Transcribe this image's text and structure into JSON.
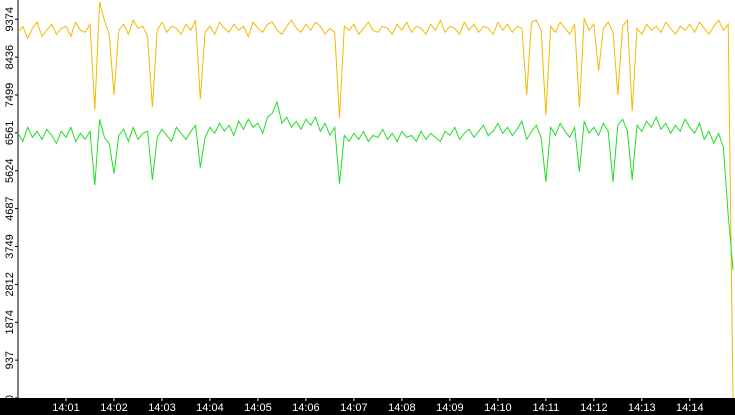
{
  "chart_data": {
    "type": "line",
    "categories": [
      null,
      null,
      null,
      null,
      null,
      null,
      null,
      null,
      null,
      null,
      "14:01",
      null,
      null,
      null,
      null,
      null,
      null,
      null,
      null,
      null,
      "14:02",
      null,
      null,
      null,
      null,
      null,
      null,
      null,
      null,
      null,
      "14:03",
      null,
      null,
      null,
      null,
      null,
      null,
      null,
      null,
      null,
      "14:04",
      null,
      null,
      null,
      null,
      null,
      null,
      null,
      null,
      null,
      "14:05",
      null,
      null,
      null,
      null,
      null,
      null,
      null,
      null,
      null,
      "14:06",
      null,
      null,
      null,
      null,
      null,
      null,
      null,
      null,
      null,
      "14:07",
      null,
      null,
      null,
      null,
      null,
      null,
      null,
      null,
      null,
      "14:08",
      null,
      null,
      null,
      null,
      null,
      null,
      null,
      null,
      null,
      "14:09",
      null,
      null,
      null,
      null,
      null,
      null,
      null,
      null,
      null,
      "14:10",
      null,
      null,
      null,
      null,
      null,
      null,
      null,
      null,
      null,
      "14:11",
      null,
      null,
      null,
      null,
      null,
      null,
      null,
      null,
      null,
      "14:12",
      null,
      null,
      null,
      null,
      null,
      null,
      null,
      null,
      null,
      "14:13",
      null,
      null,
      null,
      null,
      null,
      null,
      null,
      null,
      null,
      "14:14",
      null,
      null,
      null,
      null,
      null,
      null,
      null,
      null,
      null
    ],
    "series": [
      {
        "color": "#f5b800",
        "values": [
          9050,
          9200,
          8900,
          9150,
          9300,
          8950,
          9100,
          9250,
          9000,
          9150,
          9200,
          8950,
          9300,
          9100,
          9050,
          9250,
          7130,
          9800,
          9350,
          9000,
          7500,
          9100,
          9250,
          9000,
          9350,
          9150,
          9200,
          8950,
          7200,
          9100,
          9300,
          9050,
          9200,
          9150,
          9000,
          9250,
          9100,
          9350,
          7400,
          9050,
          9200,
          9000,
          9300,
          9150,
          9050,
          9250,
          9100,
          9200,
          8950,
          9300,
          9150,
          9050,
          9250,
          9300,
          9100,
          9000,
          9200,
          9350,
          9150,
          9050,
          9250,
          9100,
          9300,
          9200,
          9000,
          9150,
          9050,
          6930,
          9200,
          9100,
          9250,
          9000,
          9150,
          9300,
          9100,
          9050,
          9200,
          9150,
          9000,
          9250,
          9100,
          9300,
          9050,
          9200,
          9150,
          9000,
          9250,
          9100,
          9350,
          9050,
          9200,
          9150,
          9000,
          9300,
          9100,
          9250,
          9050,
          9200,
          9150,
          9000,
          9300,
          9100,
          9250,
          9050,
          9200,
          9150,
          7500,
          9300,
          9350,
          9100,
          7000,
          9200,
          9050,
          9300,
          9150,
          9000,
          9250,
          7200,
          9400,
          9100,
          9250,
          8100,
          9150,
          9300,
          9050,
          7500,
          9200,
          9350,
          7100,
          9150,
          9000,
          9250,
          9100,
          9200,
          9050,
          9300,
          9150,
          9000,
          9200,
          9100,
          9250,
          9050,
          9300,
          9150,
          9000,
          9200,
          9350,
          9100,
          9250,
          0
        ]
      },
      {
        "color": "#22dd22",
        "values": [
          6550,
          6350,
          6700,
          6450,
          6600,
          6400,
          6650,
          6500,
          6300,
          6600,
          6450,
          6700,
          6350,
          6550,
          6400,
          6600,
          5270,
          6900,
          6450,
          6300,
          5550,
          6500,
          6650,
          6350,
          6700,
          6400,
          6550,
          6600,
          5400,
          6450,
          6650,
          6500,
          6350,
          6700,
          6550,
          6400,
          6600,
          6750,
          5700,
          6450,
          6700,
          6550,
          6800,
          6600,
          6750,
          6500,
          6850,
          6650,
          6900,
          6700,
          6800,
          6550,
          6950,
          7050,
          7325,
          6800,
          6950,
          6700,
          6850,
          6650,
          6900,
          6750,
          6950,
          6600,
          6800,
          6500,
          6700,
          5300,
          6500,
          6350,
          6550,
          6400,
          6600,
          6350,
          6500,
          6450,
          6650,
          6400,
          6550,
          6350,
          6600,
          6450,
          6500,
          6350,
          6600,
          6400,
          6550,
          6450,
          6350,
          6600,
          6500,
          6700,
          6400,
          6550,
          6650,
          6450,
          6600,
          6750,
          6500,
          6600,
          6800,
          6550,
          6700,
          6500,
          6650,
          6850,
          6400,
          6600,
          6750,
          6450,
          5350,
          6700,
          6500,
          6800,
          6600,
          6450,
          6700,
          5600,
          6850,
          6550,
          6700,
          6500,
          6800,
          6600,
          5350,
          6750,
          6900,
          6600,
          5400,
          6750,
          6600,
          6850,
          6700,
          6950,
          6650,
          6800,
          6550,
          6750,
          6600,
          6900,
          6700,
          6550,
          6800,
          6400,
          6600,
          6300,
          6550,
          6200,
          4530,
          3170
        ]
      }
    ],
    "ylim": [
      0,
      9850
    ],
    "yticks": [
      0,
      937,
      1874,
      2812,
      3749,
      4687,
      5624,
      6561,
      7499,
      8436,
      9374
    ]
  }
}
